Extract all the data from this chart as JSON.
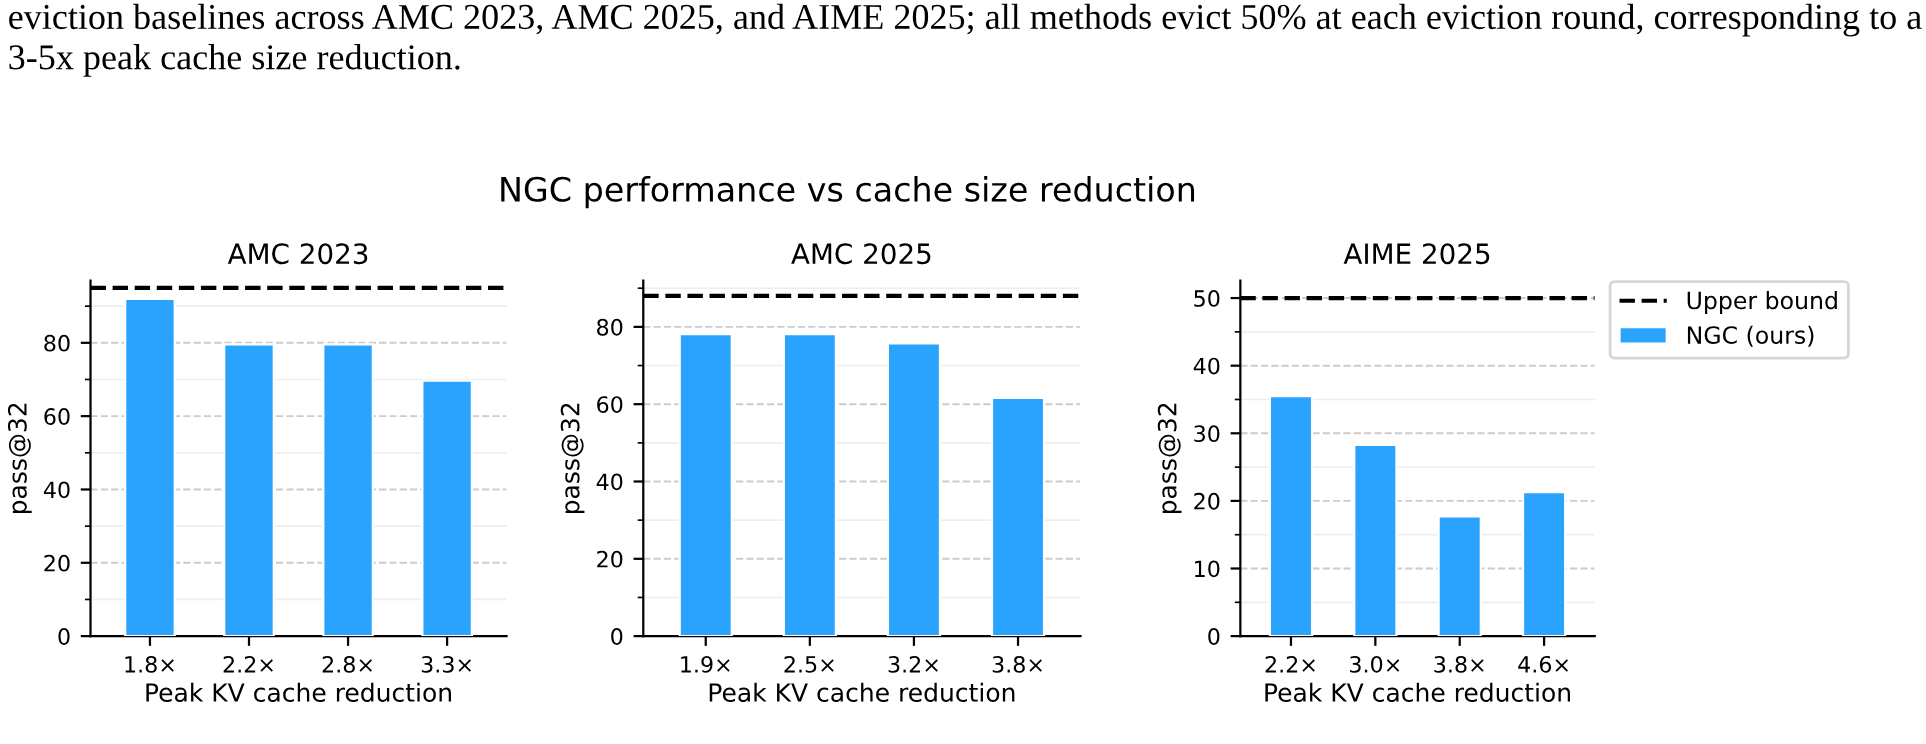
{
  "chart_data": [
    {
      "type": "bar",
      "title": "AMC 2023",
      "xlabel": "Peak KV cache reduction",
      "ylabel": "pass@32",
      "categories": [
        "1.8×",
        "2.2×",
        "2.8×",
        "3.3×"
      ],
      "series": [
        {
          "color": "#29a3fe",
          "values": [
            92,
            79.6,
            79.6,
            69.7
          ]
        }
      ],
      "ylim": [
        0,
        97
      ],
      "yticks": [
        0,
        20,
        40,
        60,
        80
      ],
      "grid": "y",
      "ref_lines": [
        {
          "axis": "y",
          "value": 95,
          "color": "#000000",
          "line_style": "dashed"
        }
      ],
      "annotations": [
        "eviction baselines across AMC 2023, AMC 2025, and AIME 2025; all methods evict 50% at each eviction round, corresponding to a 3-5x peak cache size reduction.",
        "NGC performance vs cache size reduction"
      ]
    },
    {
      "type": "bar",
      "title": "AMC 2025",
      "xlabel": "Peak KV cache reduction",
      "ylabel": "pass@32",
      "categories": [
        "1.9×",
        "2.5×",
        "3.2×",
        "3.8×"
      ],
      "series": [
        {
          "color": "#29a3fe",
          "values": [
            78.1,
            78.1,
            75.7,
            61.6
          ]
        }
      ],
      "ylim": [
        0,
        92
      ],
      "yticks": [
        0,
        20,
        40,
        60,
        80
      ],
      "grid": "y",
      "ref_lines": [
        {
          "axis": "y",
          "value": 88,
          "color": "#000000",
          "line_style": "dashed"
        }
      ]
    },
    {
      "type": "bar",
      "title": "AIME 2025",
      "xlabel": "Peak KV cache reduction",
      "ylabel": "pass@32",
      "categories": [
        "2.2×",
        "3.0×",
        "3.8×",
        "4.6×"
      ],
      "series": [
        {
          "name": "NGC (ours)",
          "color": "#29a3fe",
          "values": [
            35.5,
            28.3,
            17.7,
            21.3
          ]
        }
      ],
      "ylim": [
        0,
        52.6
      ],
      "yticks": [
        0,
        10,
        20,
        30,
        40,
        50
      ],
      "grid": "y",
      "legend": "top right",
      "ref_lines": [
        {
          "axis": "y",
          "value": 50,
          "label": "Upper bound",
          "color": "#000000",
          "line_style": "dashed"
        }
      ]
    }
  ]
}
